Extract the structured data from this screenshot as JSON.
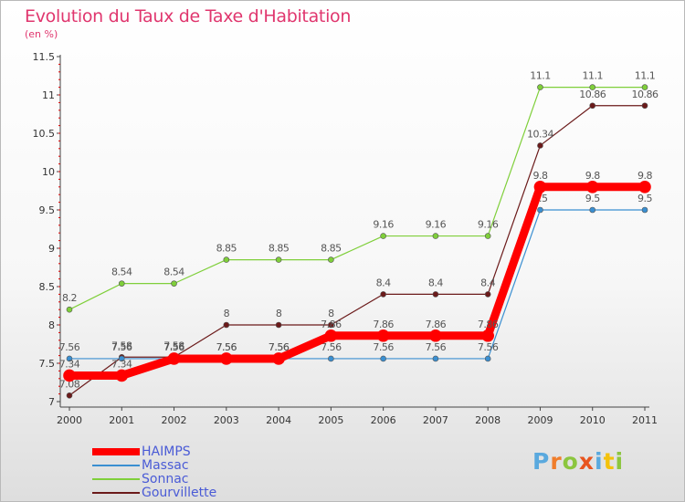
{
  "title": "Evolution du Taux de Taxe d'Habitation",
  "subtitle": "(en %)",
  "logo": {
    "text": "Proxiti",
    "letter_colors": [
      "#5aa9de",
      "#f07d2b",
      "#8cc63f",
      "#e8541e",
      "#5aa9de",
      "#f4c20d",
      "#8cc63f"
    ]
  },
  "chart_data": {
    "type": "line",
    "title": "Evolution du Taux de Taxe d'Habitation",
    "subtitle": "(en %)",
    "x": [
      "2000",
      "2001",
      "2002",
      "2003",
      "2004",
      "2005",
      "2006",
      "2007",
      "2008",
      "2009",
      "2010",
      "2011"
    ],
    "ylim": [
      7,
      11.5
    ],
    "yticks": [
      "7",
      "7.5",
      "8",
      "8.5",
      "9",
      "9.5",
      "10",
      "10.5",
      "11",
      "11.5"
    ],
    "grid": false,
    "legend_position": "bottom-left",
    "series": [
      {
        "name": "HAIMPS",
        "color": "#ff0000",
        "emphasis": true,
        "values": [
          7.34,
          7.34,
          7.56,
          7.56,
          7.56,
          7.86,
          7.86,
          7.86,
          7.86,
          9.8,
          9.8,
          9.8
        ],
        "labels": [
          "7.34",
          "7.34",
          "7.56",
          "7.56",
          "7.56",
          "7.86",
          "7.86",
          "7.86",
          "7.86",
          "9.8",
          "9.8",
          "9.8"
        ]
      },
      {
        "name": "Massac",
        "color": "#3a8fd1",
        "values": [
          7.56,
          7.56,
          7.56,
          7.56,
          7.56,
          7.56,
          7.56,
          7.56,
          7.56,
          9.5,
          9.5,
          9.5
        ],
        "labels": [
          "7.56",
          "7.56",
          "7.56",
          "7.56",
          "7.56",
          "7.56",
          "7.56",
          "7.56",
          "7.56",
          "9.5",
          "9.5",
          "9.5"
        ]
      },
      {
        "name": "Sonnac",
        "color": "#7fcf3a",
        "values": [
          8.2,
          8.54,
          8.54,
          8.85,
          8.85,
          8.85,
          9.16,
          9.16,
          9.16,
          11.1,
          11.1,
          11.1
        ],
        "labels": [
          "8.2",
          "8.54",
          "8.54",
          "8.85",
          "8.85",
          "8.85",
          "9.16",
          "9.16",
          "9.16",
          "11.1",
          "11.1",
          "11.1"
        ]
      },
      {
        "name": "Gourvillette",
        "color": "#6b1a1a",
        "values": [
          7.08,
          7.58,
          7.58,
          8,
          8,
          8,
          8.4,
          8.4,
          8.4,
          10.34,
          10.86,
          10.86
        ],
        "labels": [
          "7.08",
          "7.58",
          "7.58",
          "8",
          "8",
          "8",
          "8.4",
          "8.4",
          "8.4",
          "10.34",
          "10.86",
          "10.86"
        ]
      }
    ]
  }
}
